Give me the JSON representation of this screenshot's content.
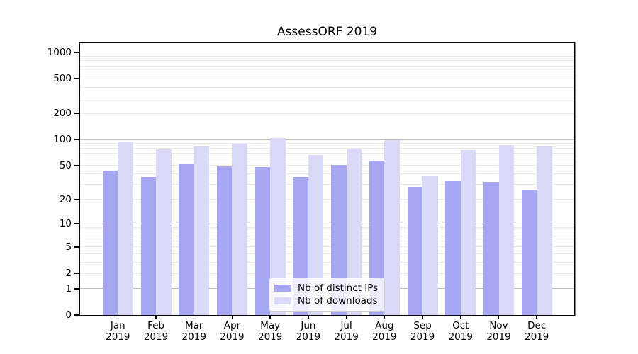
{
  "window": {
    "background": "#ffffff"
  },
  "chart_data": {
    "type": "bar",
    "title": "AssessORF 2019",
    "categories": [
      "Jan",
      "Feb",
      "Mar",
      "Apr",
      "May",
      "Jun",
      "Jul",
      "Aug",
      "Sep",
      "Oct",
      "Nov",
      "Dec"
    ],
    "category_year": "2019",
    "series": [
      {
        "name": "Nb of distinct IPs",
        "color": "#a6a6f2",
        "values": [
          44,
          37,
          52,
          49,
          48,
          37,
          51,
          57,
          28,
          33,
          32,
          26
        ]
      },
      {
        "name": "Nb of downloads",
        "color": "#dadaf8",
        "values": [
          95,
          77,
          85,
          90,
          105,
          66,
          78,
          98,
          38,
          76,
          86,
          85
        ]
      }
    ],
    "yticks": [
      0,
      1,
      2,
      5,
      10,
      20,
      50,
      100,
      200,
      500,
      1000
    ],
    "scale": "log10(value+1)",
    "ylim": [
      0,
      1276
    ],
    "grid": {
      "horizontal": true,
      "major_at": [
        1,
        10,
        100,
        1000
      ],
      "minor_per_decade": [
        2,
        3,
        4,
        5,
        6,
        7,
        8,
        9
      ]
    },
    "legend_position": "bottom-center",
    "colors": {
      "axis": "#000000",
      "major_grid": "#bcbcbc",
      "minor_grid": "#e9e9e9",
      "text": "#000000"
    }
  }
}
